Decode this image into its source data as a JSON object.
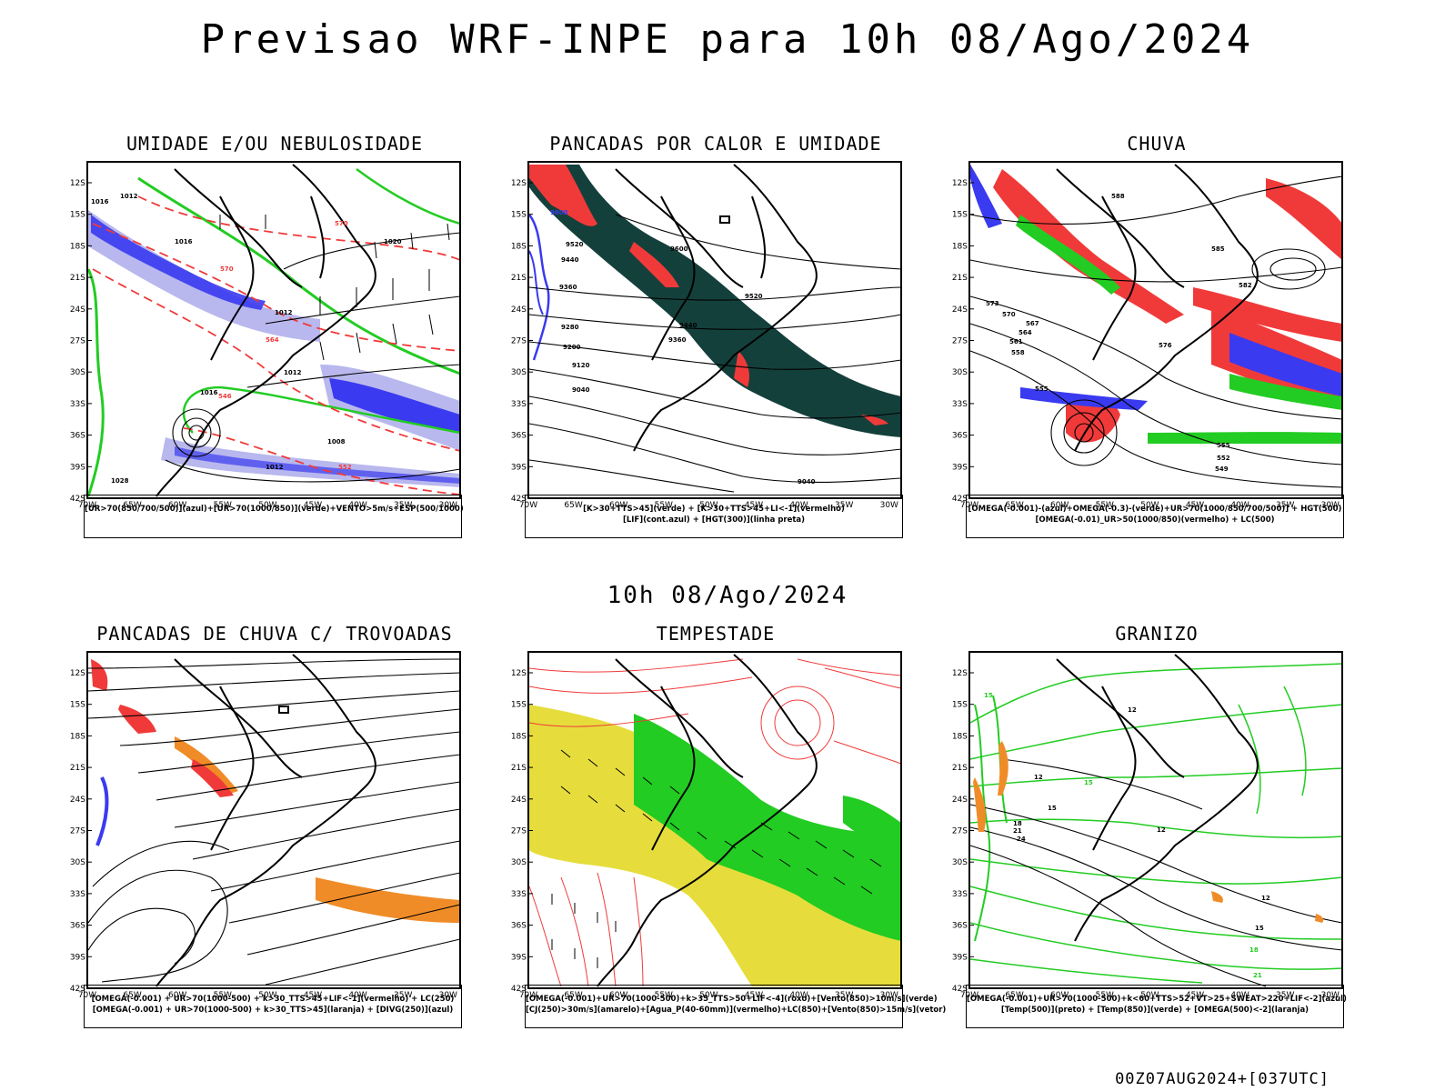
{
  "main_title": "Previsao WRF-INPE  para 10h 08/Ago/2024",
  "mid_date": "10h 08/Ago/2024",
  "footer_run": "00Z07AUG2024+[037UTC]",
  "axes": {
    "lat_labels": [
      "12S",
      "15S",
      "18S",
      "21S",
      "24S",
      "27S",
      "30S",
      "33S",
      "36S",
      "39S",
      "42S"
    ],
    "lon_labels": [
      "70W",
      "65W",
      "60W",
      "55W",
      "50W",
      "45W",
      "40W",
      "35W",
      "30W"
    ]
  },
  "colors": {
    "blue": "#3a3af0",
    "light_blue": "#b8b8ee",
    "green": "#22cc22",
    "red": "#f03a3a",
    "orange": "#f08c28",
    "yellow": "#e6dd3c",
    "dark_teal": "#14403c"
  },
  "panels": [
    {
      "id": "umidade",
      "title": "UMIDADE E/OU NEBULOSIDADE",
      "legend": [
        "[UR>70(850/700/500)](azul)+[UR>70(1000/850)](verde)+VENTO>5m/s+ESP(500/1000)"
      ],
      "contour_labels": [
        "1016",
        "1012",
        "1020",
        "1016",
        "1012",
        "1012",
        "1008",
        "1016",
        "1012",
        "1028",
        "570",
        "564",
        "552",
        "546",
        "570"
      ]
    },
    {
      "id": "pancadas-calor",
      "title": "PANCADAS POR CALOR E UMIDADE",
      "legend": [
        "[K>30+TTS>45](verde) + [K>30+TTS>45+LI<-1](vermelho)",
        "[LIF](cont.azul) + [HGT(300)](linha preta)"
      ],
      "contour_labels": [
        "9600",
        "9520",
        "9440",
        "9360",
        "9280",
        "9200",
        "9120",
        "9040",
        "9600",
        "9520",
        "9440",
        "9360",
        "9040"
      ]
    },
    {
      "id": "chuva",
      "title": "CHUVA",
      "legend": [
        "[OMEGA(-0.001)-(azul)+OMEGA(-0.3)-(verde)+UR>70(1000/850/700/500)] + HGT(500)",
        "[OMEGA(-0.01)_UR>50(1000/850)(vermelho) + LC(500)"
      ],
      "contour_labels": [
        "588",
        "585",
        "573",
        "570",
        "567",
        "564",
        "561",
        "558",
        "555",
        "549",
        "552",
        "555",
        "576",
        "582"
      ]
    },
    {
      "id": "pancadas-trovoadas",
      "title": "PANCADAS DE CHUVA C/ TROVOADAS",
      "legend": [
        "[OMEGA(-0.001) + UR>70(1000-500) + k>30_TTS>45+LIF<-1](vermelho) + LC(250)",
        "[OMEGA(-0.001) + UR>70(1000-500) + k>30_TTS>45](laranja) + [DIVG(250)](azul)"
      ]
    },
    {
      "id": "tempestade",
      "title": "TEMPESTADE",
      "legend": [
        "[OMEGA(-0.001)+UR>70(1000-500)+k>35_TTS>50+LIF<-4](roxo)+[Vento(850)>10m/s](verde)",
        "[CJ(250)>30m/s](amarelo)+[Agua_P(40-60mm)](vermelho)+LC(850)+[Vento(850)>15m/s](vetor)"
      ]
    },
    {
      "id": "granizo",
      "title": "GRANIZO",
      "legend": [
        "[OMEGA(-0.001)+UR>70(1000-500)+k<60+TTS>52+VT>25+SWEAT>220+LIF<-2](azul)",
        "[Temp(500)](preto) + [Temp(850)](verde) + [OMEGA(500)<-2](laranja)"
      ],
      "contour_labels": [
        "15",
        "12",
        "15",
        "18",
        "21",
        "24",
        "12",
        "12",
        "15",
        "18",
        "21",
        "12",
        "15"
      ]
    }
  ]
}
